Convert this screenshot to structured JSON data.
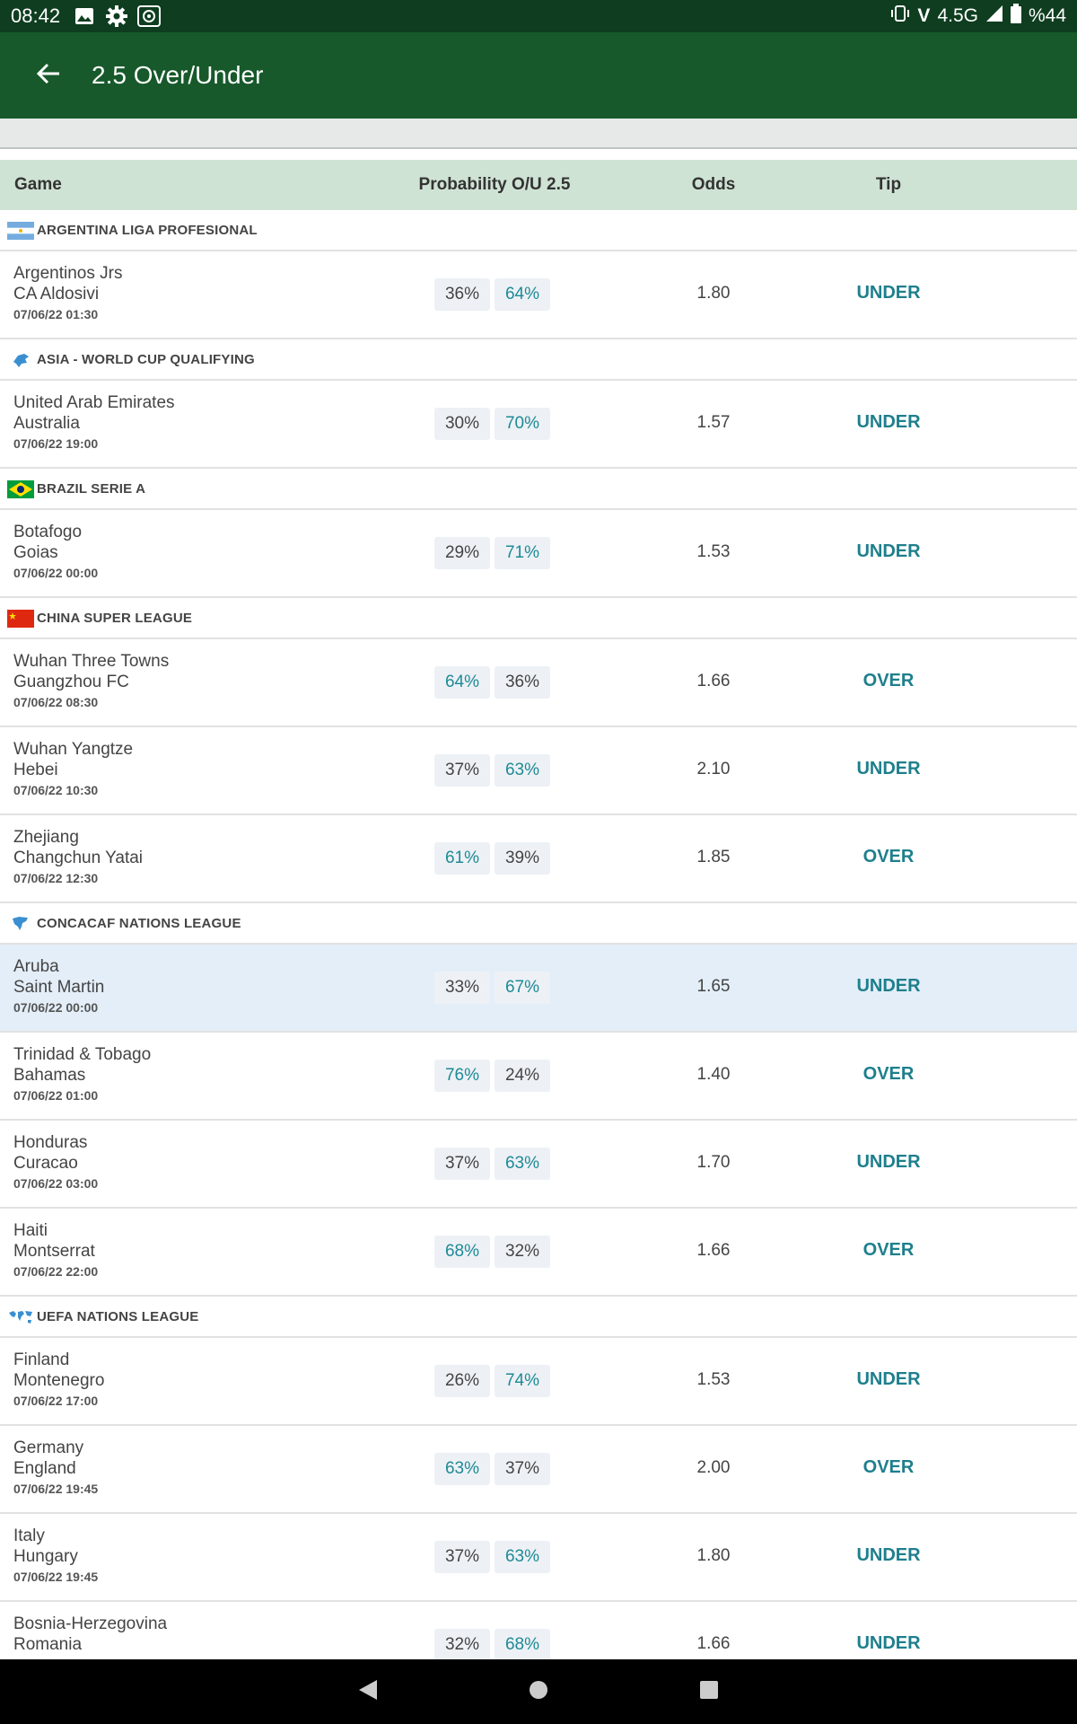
{
  "status_bar": {
    "time": "08:42",
    "network": "4.5G",
    "battery": "%44",
    "icons": [
      "image-icon",
      "gear-icon",
      "app-icon",
      "vibrate-icon",
      "volte-icon",
      "signal-icon",
      "battery-icon"
    ]
  },
  "app_bar": {
    "title": "2.5 Over/Under",
    "back_icon": "arrow-left-icon"
  },
  "table_header": {
    "game": "Game",
    "probability": "Probability O/U 2.5",
    "odds": "Odds",
    "tip": "Tip"
  },
  "colors": {
    "status_bar": "#0f3d20",
    "app_bar": "#17592b",
    "header_bg": "#cfe3d4",
    "accent_teal": "#1e7f8c",
    "highlight_row": "#e3eef8"
  },
  "leagues": [
    {
      "name": "ARGENTINA LIGA PROFESIONAL",
      "flag": "argentina-flag-icon",
      "games": [
        {
          "home": "Argentinos Jrs",
          "away": "CA Aldosivi",
          "datetime": "07/06/22 01:30",
          "over": "36%",
          "under": "64%",
          "odds": "1.80",
          "tip": "UNDER"
        }
      ]
    },
    {
      "name": "ASIA - WORLD CUP QUALIFYING",
      "flag": "asia-continent-icon",
      "games": [
        {
          "home": "United Arab Emirates",
          "away": "Australia",
          "datetime": "07/06/22 19:00",
          "over": "30%",
          "under": "70%",
          "odds": "1.57",
          "tip": "UNDER"
        }
      ]
    },
    {
      "name": "BRAZIL SERIE A",
      "flag": "brazil-flag-icon",
      "games": [
        {
          "home": "Botafogo",
          "away": "Goias",
          "datetime": "07/06/22 00:00",
          "over": "29%",
          "under": "71%",
          "odds": "1.53",
          "tip": "UNDER"
        }
      ]
    },
    {
      "name": "CHINA SUPER LEAGUE",
      "flag": "china-flag-icon",
      "games": [
        {
          "home": "Wuhan Three Towns",
          "away": "Guangzhou FC",
          "datetime": "07/06/22 08:30",
          "over": "64%",
          "under": "36%",
          "odds": "1.66",
          "tip": "OVER"
        },
        {
          "home": "Wuhan Yangtze",
          "away": "Hebei",
          "datetime": "07/06/22 10:30",
          "over": "37%",
          "under": "63%",
          "odds": "2.10",
          "tip": "UNDER"
        },
        {
          "home": "Zhejiang",
          "away": "Changchun Yatai",
          "datetime": "07/06/22 12:30",
          "over": "61%",
          "under": "39%",
          "odds": "1.85",
          "tip": "OVER"
        }
      ]
    },
    {
      "name": "CONCACAF NATIONS LEAGUE",
      "flag": "north-america-icon",
      "games": [
        {
          "home": "Aruba",
          "away": "Saint Martin",
          "datetime": "07/06/22 00:00",
          "over": "33%",
          "under": "67%",
          "odds": "1.65",
          "tip": "UNDER",
          "highlighted": true
        },
        {
          "home": "Trinidad & Tobago",
          "away": "Bahamas",
          "datetime": "07/06/22 01:00",
          "over": "76%",
          "under": "24%",
          "odds": "1.40",
          "tip": "OVER"
        },
        {
          "home": "Honduras",
          "away": "Curacao",
          "datetime": "07/06/22 03:00",
          "over": "37%",
          "under": "63%",
          "odds": "1.70",
          "tip": "UNDER"
        },
        {
          "home": "Haiti",
          "away": "Montserrat",
          "datetime": "07/06/22 22:00",
          "over": "68%",
          "under": "32%",
          "odds": "1.66",
          "tip": "OVER"
        }
      ]
    },
    {
      "name": "UEFA NATIONS LEAGUE",
      "flag": "world-map-icon",
      "games": [
        {
          "home": "Finland",
          "away": "Montenegro",
          "datetime": "07/06/22 17:00",
          "over": "26%",
          "under": "74%",
          "odds": "1.53",
          "tip": "UNDER"
        },
        {
          "home": "Germany",
          "away": "England",
          "datetime": "07/06/22 19:45",
          "over": "63%",
          "under": "37%",
          "odds": "2.00",
          "tip": "OVER"
        },
        {
          "home": "Italy",
          "away": "Hungary",
          "datetime": "07/06/22 19:45",
          "over": "37%",
          "under": "63%",
          "odds": "1.80",
          "tip": "UNDER"
        },
        {
          "home": "Bosnia-Herzegovina",
          "away": "Romania",
          "datetime": "",
          "over": "32%",
          "under": "68%",
          "odds": "1.66",
          "tip": "UNDER"
        }
      ]
    }
  ],
  "nav_bar": {
    "icons": [
      "back-triangle-icon",
      "home-circle-icon",
      "recents-square-icon"
    ]
  }
}
